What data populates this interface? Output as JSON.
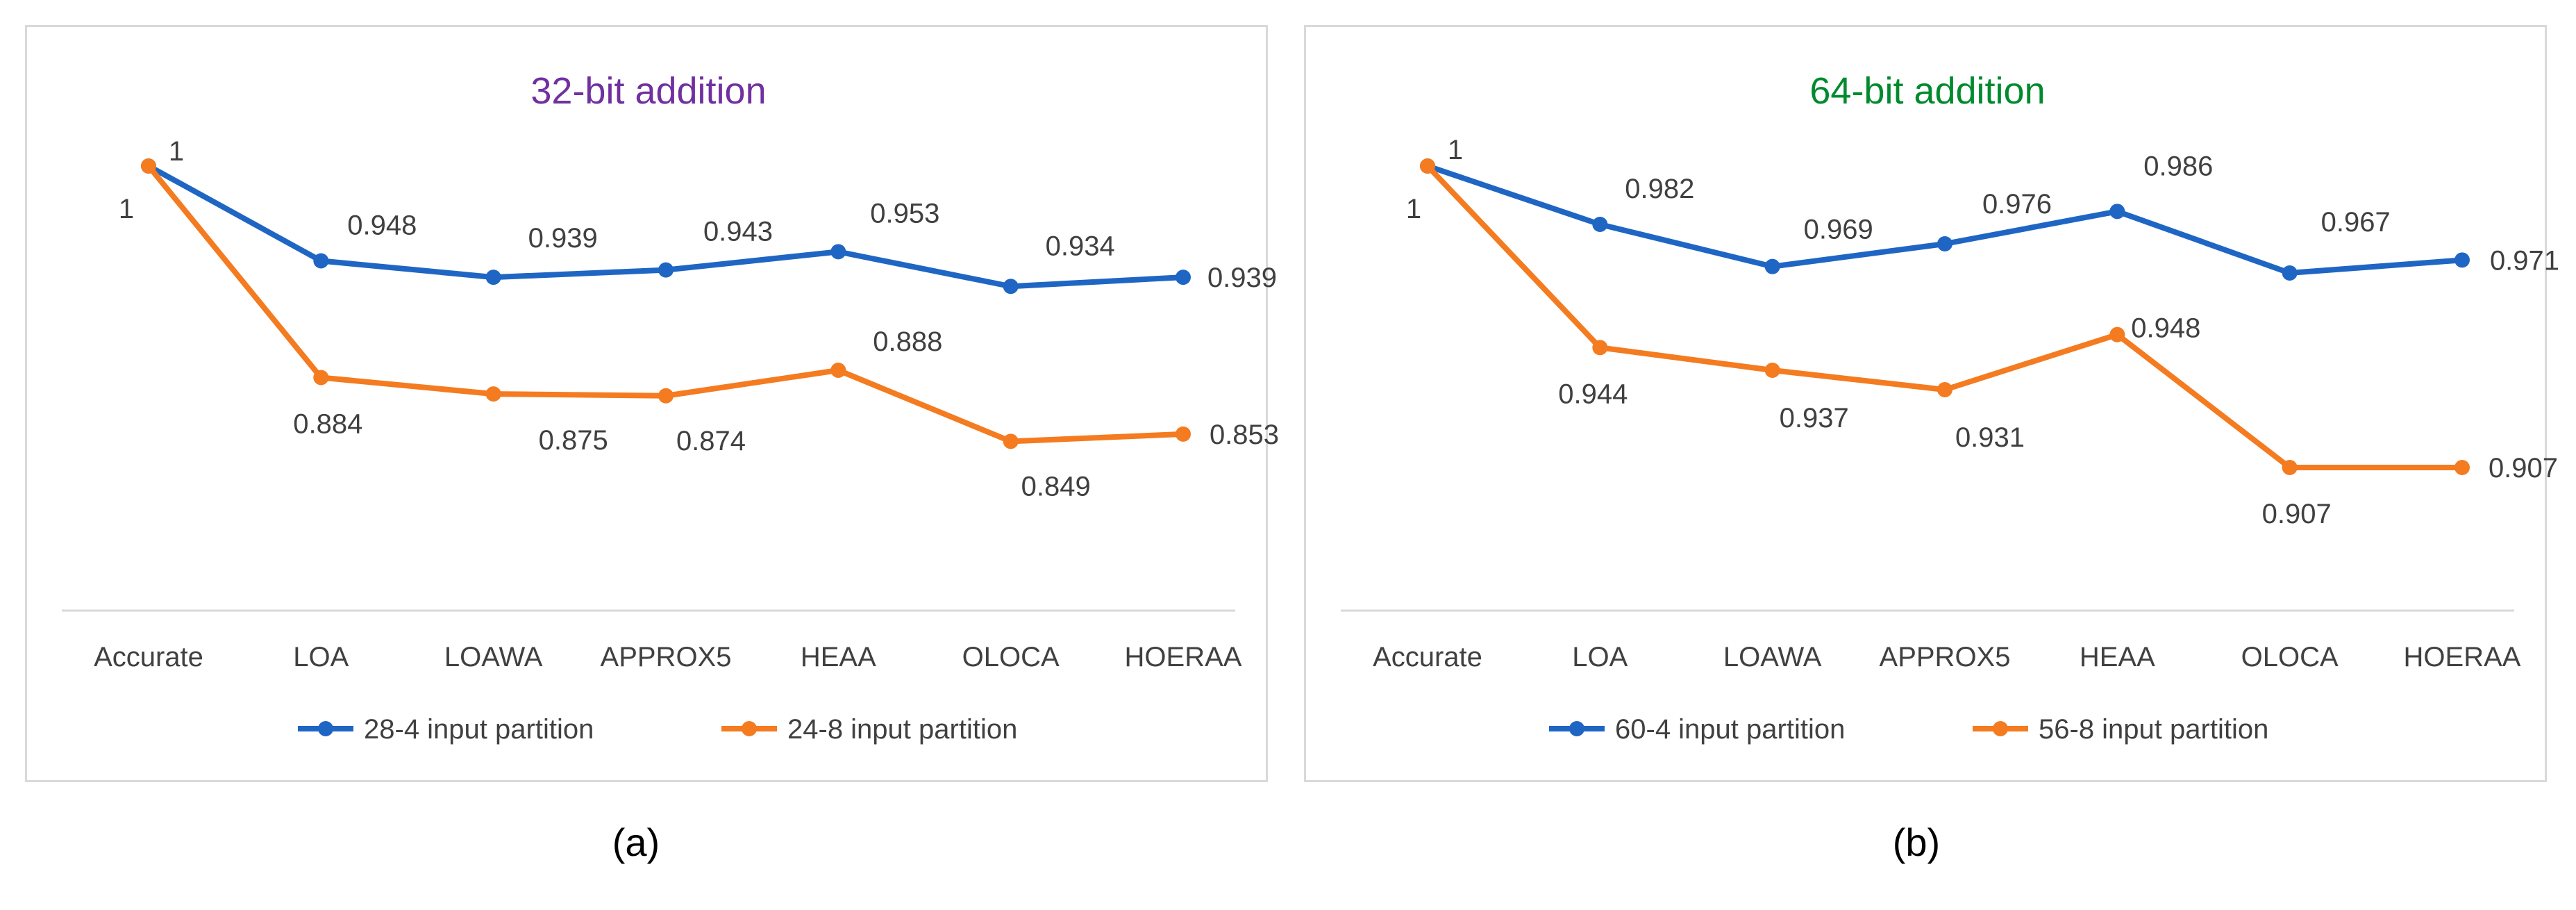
{
  "chart_data": [
    {
      "type": "line",
      "title": "32-bit addition",
      "title_color": "#7030a0",
      "categories": [
        "Accurate",
        "LOA",
        "LOAWA",
        "APPROX5",
        "HEAA",
        "OLOCA",
        "HOERAA"
      ],
      "series": [
        {
          "name": "28-4 input partition",
          "color": "#1f66c4",
          "values": [
            1,
            0.948,
            0.939,
            0.943,
            0.953,
            0.934,
            0.939
          ],
          "labels": [
            "1",
            "0.948",
            "0.939",
            "0.943",
            "0.953",
            "0.934",
            "0.939"
          ]
        },
        {
          "name": "24-8 input partition",
          "color": "#f47b20",
          "values": [
            1,
            0.884,
            0.875,
            0.874,
            0.888,
            0.849,
            0.853
          ],
          "labels": [
            "1",
            "0.884",
            "0.875",
            "0.874",
            "0.888",
            "0.849",
            "0.853"
          ]
        }
      ],
      "xlabel": "",
      "ylabel": "",
      "ylim": [
        0.76,
        1.0
      ],
      "legend": "bottom",
      "grid": false,
      "caption": "(a)"
    },
    {
      "type": "line",
      "title": "64-bit addition",
      "title_color": "#008a2e",
      "categories": [
        "Accurate",
        "LOA",
        "LOAWA",
        "APPROX5",
        "HEAA",
        "OLOCA",
        "HOERAA"
      ],
      "series": [
        {
          "name": "60-4 input partition",
          "color": "#1f66c4",
          "values": [
            1,
            0.982,
            0.969,
            0.976,
            0.986,
            0.967,
            0.971
          ],
          "labels": [
            "1",
            "0.982",
            "0.969",
            "0.976",
            "0.986",
            "0.967",
            "0.971"
          ]
        },
        {
          "name": "56-8 input partition",
          "color": "#f47b20",
          "values": [
            1,
            0.944,
            0.937,
            0.931,
            0.948,
            0.907,
            0.907
          ],
          "labels": [
            "1",
            "0.944",
            "0.937",
            "0.931",
            "0.948",
            "0.907",
            "0.907"
          ]
        }
      ],
      "xlabel": "",
      "ylabel": "",
      "ylim": [
        0.865,
        1.0
      ],
      "legend": "bottom",
      "grid": false,
      "caption": "(b)"
    }
  ]
}
